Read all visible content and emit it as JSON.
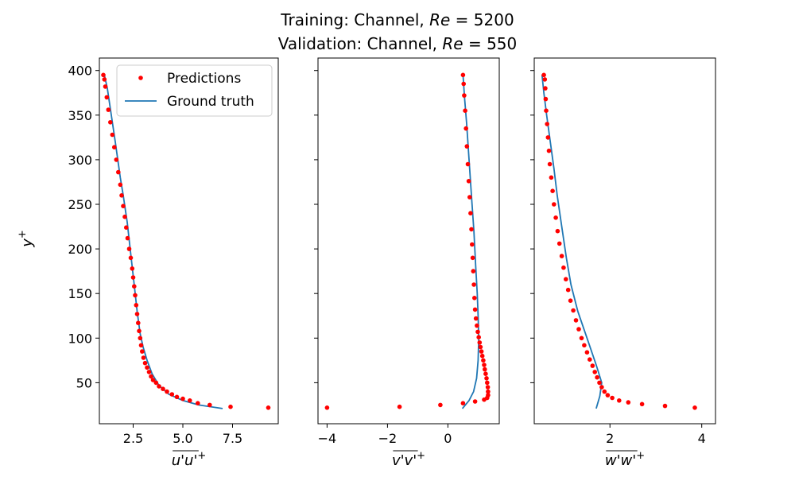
{
  "chart_data": {
    "type": "scatter",
    "title_lines": [
      "Training: Channel, Re = 5200",
      "Validation: Channel, Re = 550"
    ],
    "ylabel": "y+",
    "legend": {
      "placement": "top-right of first panel",
      "entries": [
        "Predictions",
        "Ground truth"
      ]
    },
    "colors": {
      "predictions": "#ff0000",
      "ground_truth": "#1f77b4"
    },
    "y_ticks": [
      50,
      100,
      150,
      200,
      250,
      300,
      350,
      400
    ],
    "ylim": [
      4,
      414
    ],
    "panels": [
      {
        "xlabel": "u'u'+",
        "xlim": [
          0.8,
          9.8
        ],
        "x_ticks": [
          2.5,
          5.0,
          7.5
        ],
        "x_tick_labels": [
          "2.5",
          "5.0",
          "7.5"
        ],
        "ground_truth": [
          [
            7.0,
            21.0
          ],
          [
            5.8,
            25.0
          ],
          [
            5.0,
            30.0
          ],
          [
            4.3,
            37.0
          ],
          [
            3.8,
            47.0
          ],
          [
            3.45,
            60.0
          ],
          [
            3.2,
            75.0
          ],
          [
            3.0,
            90.0
          ],
          [
            2.85,
            105.0
          ],
          [
            2.7,
            130.0
          ],
          [
            2.55,
            160.0
          ],
          [
            2.4,
            190.0
          ],
          [
            2.2,
            230.0
          ],
          [
            2.0,
            260.0
          ],
          [
            1.85,
            280.0
          ],
          [
            1.6,
            320.0
          ],
          [
            1.4,
            350.0
          ],
          [
            1.2,
            380.0
          ],
          [
            1.05,
            395.0
          ]
        ],
        "predictions": [
          [
            9.3,
            22.0
          ],
          [
            7.4,
            23.0
          ],
          [
            6.35,
            25.0
          ],
          [
            5.75,
            27.0
          ],
          [
            5.35,
            30.0
          ],
          [
            5.0,
            32.0
          ],
          [
            4.7,
            34.0
          ],
          [
            4.45,
            37.0
          ],
          [
            4.2,
            40.0
          ],
          [
            4.0,
            43.0
          ],
          [
            3.8,
            46.0
          ],
          [
            3.65,
            50.0
          ],
          [
            3.5,
            53.0
          ],
          [
            3.4,
            57.0
          ],
          [
            3.3,
            62.0
          ],
          [
            3.2,
            67.0
          ],
          [
            3.1,
            72.0
          ],
          [
            3.02,
            78.0
          ],
          [
            2.95,
            85.0
          ],
          [
            2.9,
            92.0
          ],
          [
            2.85,
            100.0
          ],
          [
            2.8,
            108.0
          ],
          [
            2.75,
            117.0
          ],
          [
            2.7,
            127.0
          ],
          [
            2.65,
            137.0
          ],
          [
            2.6,
            148.0
          ],
          [
            2.55,
            158.0
          ],
          [
            2.5,
            168.0
          ],
          [
            2.45,
            178.0
          ],
          [
            2.38,
            190.0
          ],
          [
            2.3,
            200.0
          ],
          [
            2.22,
            212.0
          ],
          [
            2.15,
            224.0
          ],
          [
            2.08,
            236.0
          ],
          [
            2.0,
            248.0
          ],
          [
            1.92,
            260.0
          ],
          [
            1.85,
            272.0
          ],
          [
            1.75,
            286.0
          ],
          [
            1.65,
            300.0
          ],
          [
            1.55,
            314.0
          ],
          [
            1.45,
            328.0
          ],
          [
            1.35,
            342.0
          ],
          [
            1.25,
            356.0
          ],
          [
            1.17,
            370.0
          ],
          [
            1.1,
            382.0
          ],
          [
            1.05,
            390.0
          ],
          [
            1.0,
            395.0
          ]
        ]
      },
      {
        "xlabel": "v'v'+",
        "xlim": [
          -4.3,
          1.7
        ],
        "x_ticks": [
          -4,
          -2,
          0
        ],
        "x_tick_labels": [
          "−4",
          "−2",
          "0"
        ],
        "ground_truth": [
          [
            0.48,
            21.0
          ],
          [
            0.7,
            30.0
          ],
          [
            0.85,
            40.0
          ],
          [
            0.95,
            55.0
          ],
          [
            1.0,
            75.0
          ],
          [
            1.02,
            100.0
          ],
          [
            1.0,
            125.0
          ],
          [
            0.97,
            150.0
          ],
          [
            0.92,
            180.0
          ],
          [
            0.86,
            220.0
          ],
          [
            0.78,
            260.0
          ],
          [
            0.7,
            300.0
          ],
          [
            0.62,
            340.0
          ],
          [
            0.55,
            370.0
          ],
          [
            0.5,
            395.0
          ]
        ],
        "predictions": [
          [
            -4.0,
            22.0
          ],
          [
            -1.6,
            23.0
          ],
          [
            -0.25,
            25.0
          ],
          [
            0.5,
            27.0
          ],
          [
            0.9,
            29.0
          ],
          [
            1.2,
            31.0
          ],
          [
            1.3,
            33.0
          ],
          [
            1.33,
            36.0
          ],
          [
            1.33,
            40.0
          ],
          [
            1.32,
            45.0
          ],
          [
            1.3,
            50.0
          ],
          [
            1.28,
            55.0
          ],
          [
            1.25,
            60.0
          ],
          [
            1.22,
            65.0
          ],
          [
            1.2,
            70.0
          ],
          [
            1.17,
            75.0
          ],
          [
            1.14,
            80.0
          ],
          [
            1.11,
            85.0
          ],
          [
            1.08,
            90.0
          ],
          [
            1.05,
            95.0
          ],
          [
            1.02,
            101.0
          ],
          [
            0.99,
            107.0
          ],
          [
            0.96,
            114.0
          ],
          [
            0.93,
            122.0
          ],
          [
            0.9,
            132.0
          ],
          [
            0.88,
            145.0
          ],
          [
            0.86,
            160.0
          ],
          [
            0.84,
            175.0
          ],
          [
            0.82,
            190.0
          ],
          [
            0.8,
            205.0
          ],
          [
            0.78,
            222.0
          ],
          [
            0.75,
            240.0
          ],
          [
            0.72,
            258.0
          ],
          [
            0.69,
            276.0
          ],
          [
            0.66,
            295.0
          ],
          [
            0.63,
            315.0
          ],
          [
            0.6,
            335.0
          ],
          [
            0.57,
            355.0
          ],
          [
            0.54,
            372.0
          ],
          [
            0.52,
            385.0
          ],
          [
            0.5,
            395.0
          ]
        ]
      },
      {
        "xlabel": "w'w'+",
        "xlim": [
          0.35,
          4.3
        ],
        "x_ticks": [
          2,
          4
        ],
        "x_tick_labels": [
          "2",
          "4"
        ],
        "ground_truth": [
          [
            1.7,
            21.0
          ],
          [
            1.78,
            35.0
          ],
          [
            1.82,
            50.0
          ],
          [
            1.7,
            70.0
          ],
          [
            1.5,
            100.0
          ],
          [
            1.3,
            130.0
          ],
          [
            1.15,
            160.0
          ],
          [
            1.05,
            190.0
          ],
          [
            0.95,
            225.0
          ],
          [
            0.85,
            260.0
          ],
          [
            0.78,
            290.0
          ],
          [
            0.7,
            320.0
          ],
          [
            0.62,
            350.0
          ],
          [
            0.56,
            375.0
          ],
          [
            0.52,
            395.0
          ]
        ],
        "predictions": [
          [
            3.85,
            22.0
          ],
          [
            3.2,
            24.0
          ],
          [
            2.7,
            26.0
          ],
          [
            2.4,
            28.0
          ],
          [
            2.2,
            30.0
          ],
          [
            2.05,
            33.0
          ],
          [
            1.95,
            36.0
          ],
          [
            1.88,
            40.0
          ],
          [
            1.82,
            45.0
          ],
          [
            1.77,
            50.0
          ],
          [
            1.72,
            56.0
          ],
          [
            1.67,
            62.0
          ],
          [
            1.62,
            69.0
          ],
          [
            1.56,
            76.0
          ],
          [
            1.5,
            84.0
          ],
          [
            1.44,
            92.0
          ],
          [
            1.38,
            100.0
          ],
          [
            1.32,
            110.0
          ],
          [
            1.26,
            120.0
          ],
          [
            1.2,
            131.0
          ],
          [
            1.14,
            142.0
          ],
          [
            1.09,
            154.0
          ],
          [
            1.04,
            166.0
          ],
          [
            0.99,
            179.0
          ],
          [
            0.95,
            192.0
          ],
          [
            0.9,
            206.0
          ],
          [
            0.86,
            220.0
          ],
          [
            0.82,
            235.0
          ],
          [
            0.78,
            250.0
          ],
          [
            0.75,
            265.0
          ],
          [
            0.72,
            280.0
          ],
          [
            0.69,
            295.0
          ],
          [
            0.67,
            310.0
          ],
          [
            0.65,
            325.0
          ],
          [
            0.63,
            340.0
          ],
          [
            0.61,
            355.0
          ],
          [
            0.6,
            368.0
          ],
          [
            0.59,
            380.0
          ],
          [
            0.58,
            390.0
          ],
          [
            0.56,
            395.0
          ]
        ]
      }
    ]
  }
}
